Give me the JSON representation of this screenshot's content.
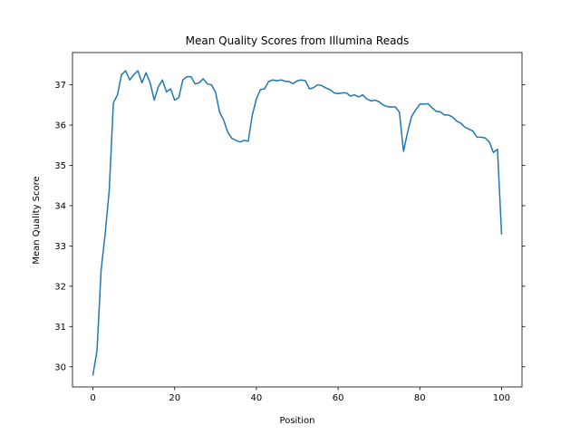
{
  "chart_data": {
    "type": "line",
    "title": "Mean Quality Scores from Illumina Reads",
    "xlabel": "Position",
    "ylabel": "Mean Quality Score",
    "xlim": [
      -5,
      105
    ],
    "ylim": [
      29.5,
      37.8
    ],
    "xticks": [
      0,
      20,
      40,
      60,
      80,
      100
    ],
    "yticks": [
      30,
      31,
      32,
      33,
      34,
      35,
      36,
      37
    ],
    "grid": false,
    "legend": "none",
    "series": [
      {
        "color": "#1f77b4",
        "x": [
          0,
          1,
          2,
          3,
          4,
          5,
          6,
          7,
          8,
          9,
          10,
          11,
          12,
          13,
          14,
          15,
          16,
          17,
          18,
          19,
          20,
          21,
          22,
          23,
          24,
          25,
          26,
          27,
          28,
          29,
          30,
          31,
          32,
          33,
          34,
          35,
          36,
          37,
          38,
          39,
          40,
          41,
          42,
          43,
          44,
          45,
          46,
          47,
          48,
          49,
          50,
          51,
          52,
          53,
          54,
          55,
          56,
          57,
          58,
          59,
          60,
          61,
          62,
          63,
          64,
          65,
          66,
          67,
          68,
          69,
          70,
          71,
          72,
          73,
          74,
          75,
          76,
          77,
          78,
          79,
          80,
          81,
          82,
          83,
          84,
          85,
          86,
          87,
          88,
          89,
          90,
          91,
          92,
          93,
          94,
          95,
          96,
          97,
          98,
          99,
          100
        ],
        "y": [
          29.8,
          30.4,
          32.4,
          33.3,
          34.4,
          36.55,
          36.75,
          37.25,
          37.35,
          37.12,
          37.25,
          37.35,
          37.05,
          37.3,
          37.05,
          36.62,
          36.95,
          37.12,
          36.82,
          36.9,
          36.62,
          36.68,
          37.12,
          37.2,
          37.2,
          37.02,
          37.05,
          37.15,
          37.02,
          37.0,
          36.82,
          36.32,
          36.12,
          35.82,
          35.67,
          35.62,
          35.58,
          35.62,
          35.6,
          36.25,
          36.65,
          36.88,
          36.9,
          37.08,
          37.12,
          37.1,
          37.12,
          37.09,
          37.08,
          37.03,
          37.1,
          37.12,
          37.1,
          36.9,
          36.93,
          37.0,
          36.98,
          36.92,
          36.88,
          36.8,
          36.78,
          36.8,
          36.8,
          36.72,
          36.75,
          36.7,
          36.75,
          36.65,
          36.6,
          36.62,
          36.58,
          36.5,
          36.46,
          36.45,
          36.45,
          36.32,
          35.35,
          35.82,
          36.22,
          36.38,
          36.52,
          36.52,
          36.53,
          36.43,
          36.34,
          36.33,
          36.25,
          36.25,
          36.2,
          36.1,
          36.05,
          35.95,
          35.9,
          35.85,
          35.7,
          35.7,
          35.68,
          35.58,
          35.32,
          35.4,
          33.3
        ]
      }
    ]
  }
}
